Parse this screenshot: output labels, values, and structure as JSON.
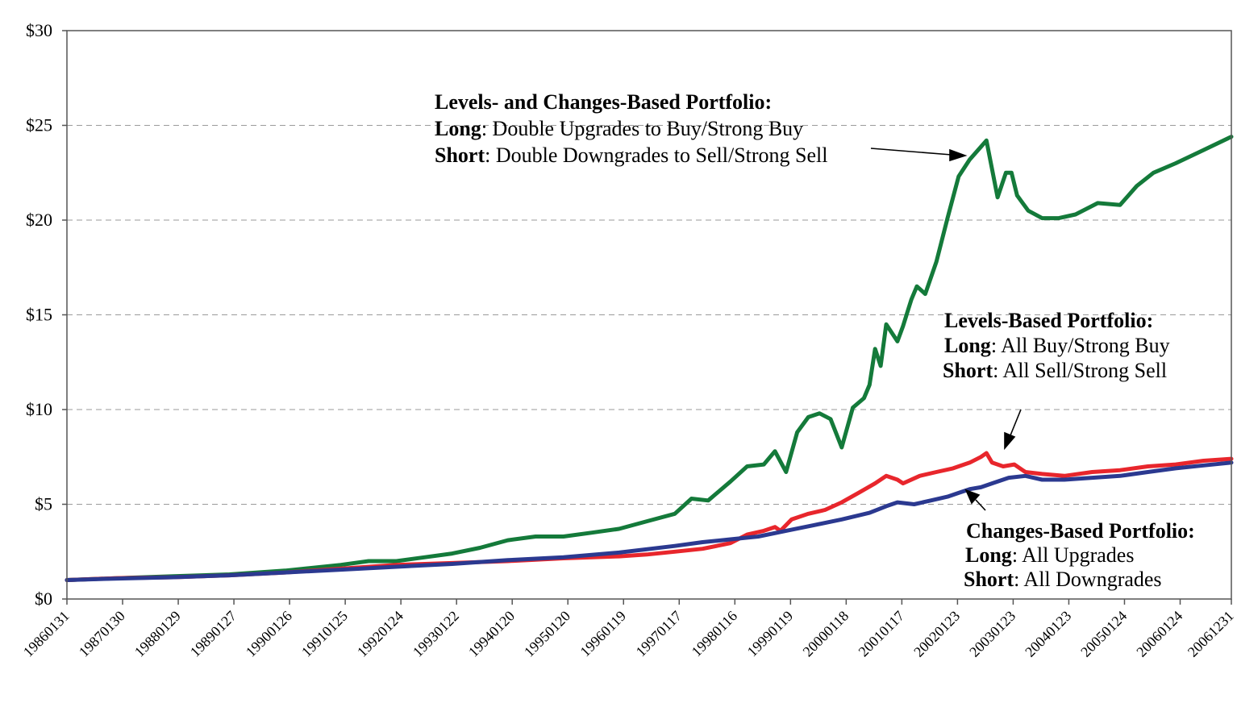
{
  "chart_data": {
    "type": "line",
    "title": "",
    "xlabel": "",
    "ylabel": "",
    "ylim": [
      0,
      30
    ],
    "yticks": [
      0,
      5,
      10,
      15,
      20,
      25,
      30
    ],
    "ytick_labels": [
      "$0",
      "$5",
      "$10",
      "$15",
      "$20",
      "$25",
      "$30"
    ],
    "grid": "horizontal dashed",
    "x_tick_labels": [
      "19860131",
      "19870130",
      "19880129",
      "19890127",
      "19900126",
      "19910125",
      "19920124",
      "19930122",
      "19940120",
      "19950120",
      "19960119",
      "19970117",
      "19980116",
      "19990119",
      "20000118",
      "20010117",
      "20020123",
      "20030123",
      "20040123",
      "20050124",
      "20060124",
      "20061231"
    ],
    "x_tick_years": [
      1986.08,
      1987.08,
      1988.08,
      1989.08,
      1990.08,
      1991.08,
      1992.08,
      1993.08,
      1994.08,
      1995.08,
      1996.08,
      1997.08,
      1998.08,
      1999.08,
      2000.08,
      2001.08,
      2002.08,
      2003.08,
      2004.08,
      2005.08,
      2006.08,
      2007.0
    ],
    "series": [
      {
        "id": "green",
        "color": "#147a3a",
        "x": [
          1986.08,
          1987.0,
          1988.0,
          1989.0,
          1990.0,
          1991.0,
          1991.5,
          1992.0,
          1992.5,
          1993.0,
          1993.5,
          1994.0,
          1994.5,
          1995.0,
          1995.5,
          1996.0,
          1996.5,
          1997.0,
          1997.3,
          1997.6,
          1998.0,
          1998.3,
          1998.6,
          1998.8,
          1999.0,
          1999.2,
          1999.4,
          1999.6,
          1999.8,
          2000.0,
          2000.2,
          2000.4,
          2000.5,
          2000.6,
          2000.7,
          2000.8,
          2001.0,
          2001.1,
          2001.25,
          2001.35,
          2001.5,
          2001.7,
          2001.9,
          2002.1,
          2002.3,
          2002.6,
          2002.8,
          2002.95,
          2003.05,
          2003.15,
          2003.35,
          2003.6,
          2003.9,
          2004.2,
          2004.6,
          2005.0,
          2005.3,
          2005.6,
          2006.0,
          2006.5,
          2007.0
        ],
        "y": [
          1.0,
          1.1,
          1.2,
          1.3,
          1.5,
          1.8,
          2.0,
          2.0,
          2.2,
          2.4,
          2.7,
          3.1,
          3.3,
          3.3,
          3.5,
          3.7,
          4.1,
          4.5,
          5.3,
          5.2,
          6.2,
          7.0,
          7.1,
          7.8,
          6.7,
          8.8,
          9.6,
          9.8,
          9.5,
          8.0,
          10.1,
          10.6,
          11.3,
          13.2,
          12.3,
          14.5,
          13.6,
          14.4,
          15.8,
          16.5,
          16.1,
          17.8,
          20.1,
          22.3,
          23.2,
          24.2,
          21.2,
          22.5,
          22.5,
          21.3,
          20.5,
          20.1,
          20.1,
          20.3,
          20.9,
          20.8,
          21.8,
          22.5,
          23.0,
          23.7,
          24.4
        ]
      },
      {
        "id": "red",
        "color": "#e8262c",
        "x": [
          1986.08,
          1987.0,
          1988.0,
          1989.0,
          1990.0,
          1991.0,
          1992.0,
          1993.0,
          1994.0,
          1995.0,
          1996.0,
          1996.5,
          1997.0,
          1997.5,
          1998.0,
          1998.3,
          1998.6,
          1998.8,
          1998.9,
          1999.1,
          1999.4,
          1999.7,
          2000.0,
          2000.3,
          2000.6,
          2000.8,
          2001.0,
          2001.1,
          2001.4,
          2001.7,
          2002.0,
          2002.3,
          2002.5,
          2002.6,
          2002.7,
          2002.9,
          2003.1,
          2003.3,
          2003.6,
          2004.0,
          2004.5,
          2005.0,
          2005.5,
          2006.0,
          2006.5,
          2007.0
        ],
        "y": [
          1.0,
          1.1,
          1.15,
          1.25,
          1.4,
          1.6,
          1.8,
          1.9,
          2.0,
          2.15,
          2.25,
          2.35,
          2.5,
          2.65,
          2.95,
          3.4,
          3.6,
          3.8,
          3.6,
          4.2,
          4.5,
          4.7,
          5.1,
          5.6,
          6.1,
          6.5,
          6.3,
          6.1,
          6.5,
          6.7,
          6.9,
          7.2,
          7.5,
          7.7,
          7.2,
          7.0,
          7.1,
          6.7,
          6.6,
          6.5,
          6.7,
          6.8,
          7.0,
          7.1,
          7.3,
          7.4
        ]
      },
      {
        "id": "blue",
        "color": "#2b3990",
        "x": [
          1986.08,
          1987.0,
          1988.0,
          1989.0,
          1990.0,
          1991.0,
          1992.0,
          1993.0,
          1994.0,
          1995.0,
          1996.0,
          1997.0,
          1997.5,
          1998.0,
          1998.5,
          1999.0,
          1999.5,
          2000.0,
          2000.5,
          2000.8,
          2001.0,
          2001.3,
          2001.6,
          2001.9,
          2002.1,
          2002.3,
          2002.5,
          2002.7,
          2003.0,
          2003.3,
          2003.6,
          2004.0,
          2004.5,
          2005.0,
          2005.5,
          2006.0,
          2006.5,
          2007.0
        ],
        "y": [
          1.0,
          1.08,
          1.15,
          1.25,
          1.4,
          1.55,
          1.7,
          1.85,
          2.05,
          2.2,
          2.45,
          2.8,
          3.0,
          3.15,
          3.3,
          3.6,
          3.9,
          4.2,
          4.55,
          4.9,
          5.1,
          5.0,
          5.2,
          5.4,
          5.6,
          5.8,
          5.9,
          6.1,
          6.4,
          6.5,
          6.3,
          6.3,
          6.4,
          6.5,
          6.7,
          6.9,
          7.05,
          7.2
        ]
      }
    ],
    "annotations": {
      "green": {
        "title": "Levels- and Changes-Based Portfolio:",
        "long_label": "Long",
        "long_text": ": Double Upgrades to Buy/Strong Buy",
        "short_label": "Short",
        "short_text": ": Double Downgrades to Sell/Strong Sell"
      },
      "red": {
        "title": "Levels-Based Portfolio:",
        "long_label": "Long",
        "long_text": ": All Buy/Strong Buy",
        "short_label": "Short",
        "short_text": ": All Sell/Strong Sell"
      },
      "blue": {
        "title": "Changes-Based Portfolio:",
        "long_label": "Long",
        "long_text": ": All Upgrades",
        "short_label": "Short",
        "short_text": ": All Downgrades"
      }
    }
  }
}
